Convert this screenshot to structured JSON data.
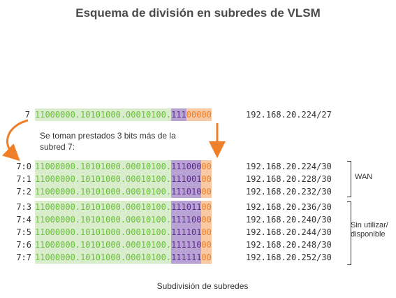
{
  "title": "Esquema de división en subredes de VLSM",
  "caption": "Subdivisión de subredes",
  "note": "Se toman prestados 3 bits más de la subred 7:",
  "top_row": {
    "label": "7",
    "network": "11000000.10101000.00010100.",
    "subnet": "111",
    "host": "00000",
    "address": "192.168.20.224/27"
  },
  "rows": [
    {
      "label": "7:0",
      "network": "11000000.10101000.00010100.",
      "subnet": "111000",
      "host": "00",
      "address": "192.168.20.224/30"
    },
    {
      "label": "7:1",
      "network": "11000000.10101000.00010100.",
      "subnet": "111001",
      "host": "00",
      "address": "192.168.20.228/30"
    },
    {
      "label": "7:2",
      "network": "11000000.10101000.00010100.",
      "subnet": "111010",
      "host": "00",
      "address": "192.168.20.232/30"
    },
    {
      "label": "7:3",
      "network": "11000000.10101000.00010100.",
      "subnet": "111011",
      "host": "00",
      "address": "192.168.20.236/30"
    },
    {
      "label": "7:4",
      "network": "11000000.10101000.00010100.",
      "subnet": "111100",
      "host": "00",
      "address": "192.168.20.240/30"
    },
    {
      "label": "7:5",
      "network": "11000000.10101000.00010100.",
      "subnet": "111101",
      "host": "00",
      "address": "192.168.20.244/30"
    },
    {
      "label": "7:6",
      "network": "11000000.10101000.00010100.",
      "subnet": "111110",
      "host": "00",
      "address": "192.168.20.248/30"
    },
    {
      "label": "7:7",
      "network": "11000000.10101000.00010100.",
      "subnet": "111111",
      "host": "00",
      "address": "192.168.20.252/30"
    }
  ],
  "groups": {
    "wan": "WAN",
    "unused_line1": "Sin utilizar/",
    "unused_line2": "disponible"
  },
  "colors": {
    "network_bg": "#d9edcc",
    "network_text": "#6abf3a",
    "subnet_bg": "#b9a3d4",
    "subnet_text": "#5b2d8c",
    "host_bg": "#f9c9a3",
    "host_text": "#f07f2a",
    "arrow": "#f07f2a"
  }
}
